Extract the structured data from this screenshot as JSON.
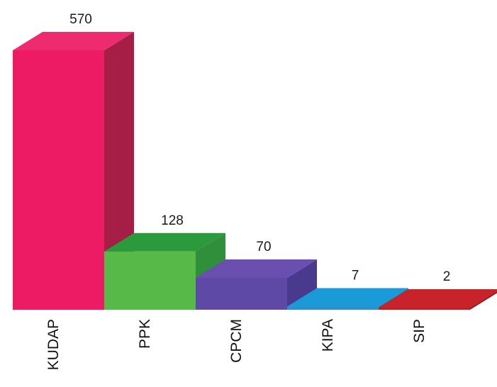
{
  "chart_data": {
    "type": "bar",
    "style": "3d",
    "title": "",
    "xlabel": "",
    "ylabel": "",
    "grid": false,
    "legend": "none",
    "categories": [
      "KUDAP",
      "PPK",
      "CPCM",
      "KIPA",
      "SIP"
    ],
    "values": [
      570,
      128,
      70,
      7,
      2
    ],
    "value_labels": [
      "570",
      "128",
      "70",
      "7",
      "2"
    ],
    "ylim": [
      0,
      570
    ],
    "colors": [
      {
        "front": "#ec1b63",
        "top": "#ee2b6e",
        "side": "#a61d45"
      },
      {
        "front": "#57b947",
        "top": "#2b9a3c",
        "side": "#2f8f3a"
      },
      {
        "front": "#5e4aa6",
        "top": "#6a4fb0",
        "side": "#4a3a8e"
      },
      {
        "front": "#2e8fd0",
        "top": "#1a9ad6",
        "side": "#177fb3"
      },
      {
        "front": "#c41e24",
        "top": "#c8222a",
        "side": "#9c1a1f"
      }
    ]
  }
}
